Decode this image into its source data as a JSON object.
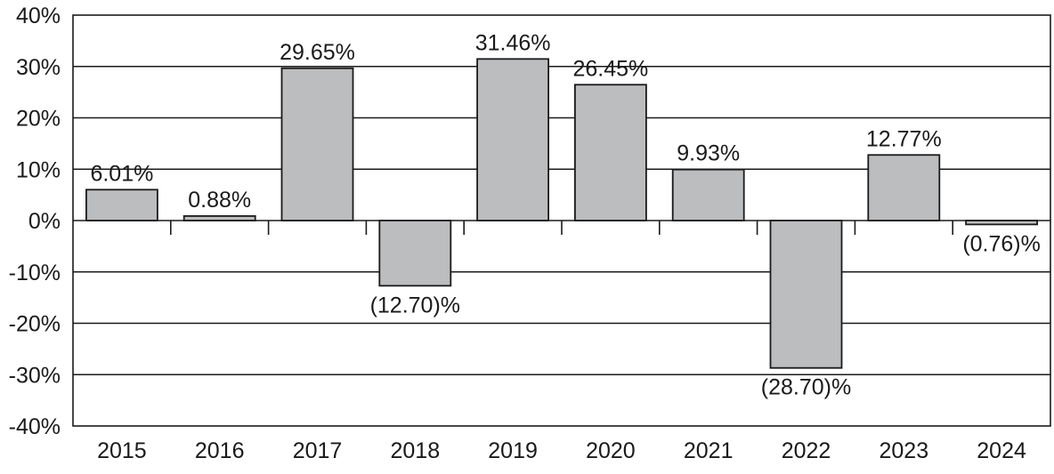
{
  "chart_data": {
    "type": "bar",
    "categories": [
      "2015",
      "2016",
      "2017",
      "2018",
      "2019",
      "2020",
      "2021",
      "2022",
      "2023",
      "2024"
    ],
    "values": [
      6.01,
      0.88,
      29.65,
      -12.7,
      31.46,
      26.45,
      9.93,
      -28.7,
      12.77,
      -0.76
    ],
    "data_labels": [
      "6.01%",
      "0.88%",
      "29.65%",
      "(12.70)%",
      "31.46%",
      "26.45%",
      "9.93%",
      "(28.70)%",
      "12.77%",
      "(0.76)%"
    ],
    "y_ticks": [
      40,
      30,
      20,
      10,
      0,
      -10,
      -20,
      -30,
      -40
    ],
    "y_tick_labels": [
      "40%",
      "30%",
      "20%",
      "10%",
      "0%",
      "-10%",
      "-20%",
      "-30%",
      "-40%"
    ],
    "ylim": [
      -40,
      40
    ],
    "grid": true,
    "legend": "none",
    "title": "",
    "xlabel": "",
    "ylabel": "",
    "colors": {
      "bar_fill": "#bcbdbf",
      "bar_stroke": "#1a1a1a",
      "grid": "#1a1a1a",
      "text": "#1a1a1a"
    }
  }
}
